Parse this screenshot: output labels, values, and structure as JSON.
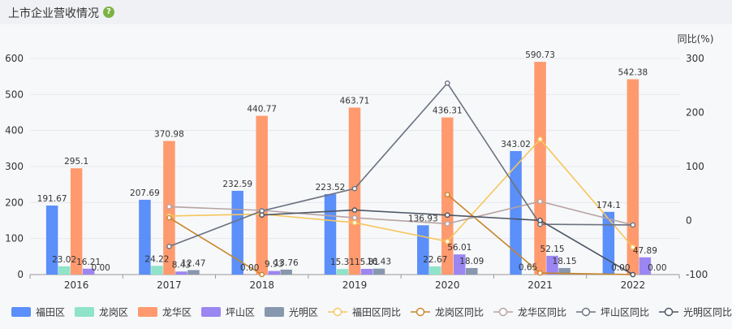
{
  "header": {
    "title": "上市企业营收情况",
    "help_icon": "question-circle-icon",
    "help_glyph": "?"
  },
  "chart_data": {
    "type": "bar",
    "categories": [
      "2016",
      "2017",
      "2018",
      "2019",
      "2020",
      "2021",
      "2022"
    ],
    "y_left": {
      "ticks": [
        0,
        100,
        200,
        300,
        400,
        500,
        600
      ],
      "ylim": [
        0,
        600
      ]
    },
    "y_right": {
      "label": "同比(%)",
      "ticks": [
        -100,
        0,
        100,
        200,
        300
      ],
      "ylim": [
        -100,
        300
      ]
    },
    "series": [
      {
        "name": "福田区",
        "type": "bar",
        "color": "#5b8ff9",
        "values": [
          191.67,
          207.69,
          232.59,
          223.52,
          136.93,
          343.02,
          174.1
        ]
      },
      {
        "name": "龙岗区",
        "type": "bar",
        "color": "#8fe3c9",
        "values": [
          23.02,
          24.22,
          0.0,
          15.31,
          22.67,
          0.65,
          0.0
        ]
      },
      {
        "name": "龙华区",
        "type": "bar",
        "color": "#ff9a6e",
        "values": [
          295.1,
          370.98,
          440.77,
          463.71,
          436.31,
          590.73,
          542.38
        ]
      },
      {
        "name": "坪山区",
        "type": "bar",
        "color": "#9b86f2",
        "values": [
          16.21,
          8.43,
          9.93,
          15.81,
          56.01,
          52.15,
          47.89
        ]
      },
      {
        "name": "光明区",
        "type": "bar",
        "color": "#8797ad",
        "values": [
          0.0,
          12.47,
          13.76,
          16.43,
          18.09,
          18.15,
          0.0
        ]
      },
      {
        "name": "福田区同比",
        "type": "line",
        "color": "#f6c65b",
        "values": [
          null,
          8.36,
          11.99,
          -3.9,
          -38.74,
          150.5,
          -49.24
        ]
      },
      {
        "name": "龙岗区同比",
        "type": "line",
        "color": "#c7862a",
        "values": [
          null,
          5.2,
          -100,
          null,
          48.1,
          -97.1,
          -100
        ]
      },
      {
        "name": "龙华区同比",
        "type": "line",
        "color": "#b8a3a3",
        "values": [
          null,
          25.7,
          18.8,
          5.2,
          -5.9,
          35.4,
          -8.2
        ]
      },
      {
        "name": "坪山区同比",
        "type": "line",
        "color": "#6b7280",
        "values": [
          null,
          -48.0,
          17.8,
          59.2,
          254.3,
          -6.9,
          -8.2
        ]
      },
      {
        "name": "光明区同比",
        "type": "line",
        "color": "#4b5563",
        "values": [
          null,
          null,
          10.3,
          19.4,
          10.1,
          0.3,
          -100
        ]
      }
    ],
    "data_labels": [
      [
        "191.67",
        "23.02",
        "295.1",
        "16.21",
        "0.00"
      ],
      [
        "207.69",
        "24.22",
        "370.98",
        "8.43",
        "12.47"
      ],
      [
        "232.59",
        "0.00",
        "440.77",
        "9.93",
        "13.76"
      ],
      [
        "223.52",
        "15.31",
        "463.71",
        "15.81",
        "16.43"
      ],
      [
        "136.93",
        "22.67",
        "436.31",
        "56.01",
        "18.09"
      ],
      [
        "343.02",
        "0.65",
        "590.73",
        "52.15",
        "18.15"
      ],
      [
        "174.1",
        "0.00",
        "542.38",
        "47.89",
        "0.00"
      ]
    ],
    "grid": true,
    "legend_position": "bottom-left"
  }
}
